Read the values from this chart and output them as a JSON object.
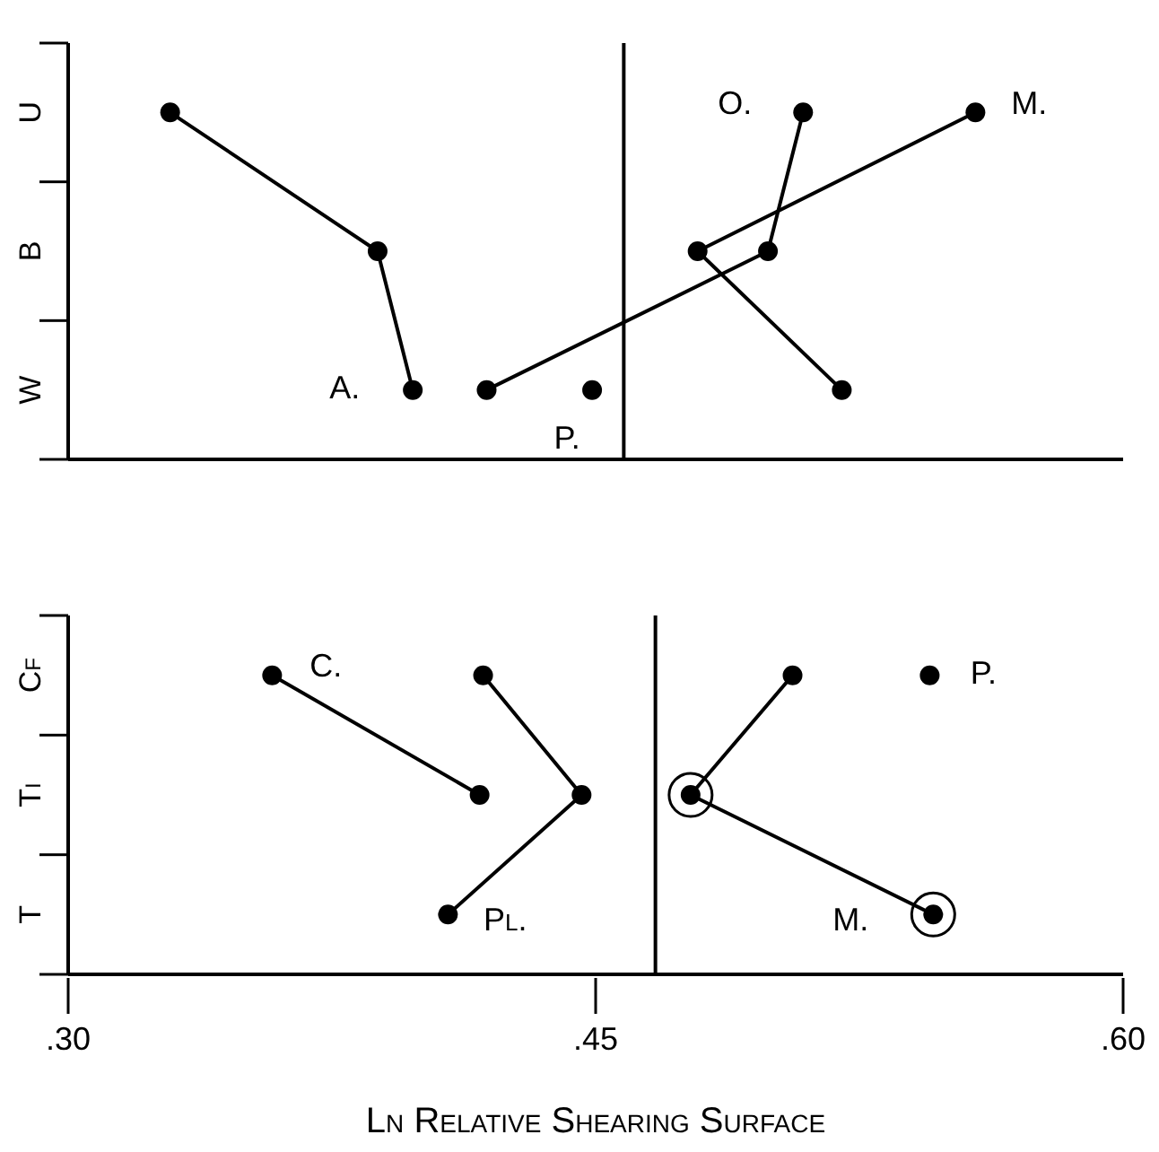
{
  "chart_data": [
    {
      "type": "line",
      "orientation": "horizontal",
      "categories": [
        "U",
        "B",
        "W"
      ],
      "xlim": [
        0.3,
        0.6
      ],
      "tick_labels": "y",
      "marker": "circle",
      "grid": false,
      "series": [
        {
          "color": "#000000",
          "values": [
            0.329,
            0.388,
            0.398
          ]
        },
        {
          "color": "#000000",
          "values": [
            0.509,
            0.499,
            0.419
          ]
        },
        {
          "color": "#000000",
          "values": [
            0.558,
            0.479,
            0.52
          ]
        },
        {
          "type": "scatter",
          "color": "#000000",
          "values": [
            null,
            null,
            0.449
          ]
        }
      ],
      "ref_lines": [
        {
          "axis": "x",
          "value": 0.458
        }
      ],
      "annotations": [
        {
          "text": "A.",
          "x": 0.398,
          "y": "W"
        },
        {
          "text": "O.",
          "x": 0.509,
          "y": "U"
        },
        {
          "text": "M.",
          "x": 0.558,
          "y": "U"
        },
        {
          "text": "P.",
          "x": 0.449,
          "y": "W"
        }
      ]
    },
    {
      "type": "line",
      "orientation": "horizontal",
      "categories": [
        "Cf",
        "Ti",
        "T"
      ],
      "xlim": [
        0.3,
        0.6
      ],
      "xticks": [
        {
          "value": 0.3,
          "label": ".30"
        },
        {
          "value": 0.45,
          "label": ".45"
        },
        {
          "value": 0.6,
          "label": ".60"
        }
      ],
      "xlabel": "Ln Relative Shearing Surface",
      "marker": "circle",
      "grid": false,
      "series": [
        {
          "color": "#000000",
          "values": [
            0.358,
            0.417,
            null
          ]
        },
        {
          "color": "#000000",
          "values": [
            0.418,
            0.446,
            0.408
          ]
        },
        {
          "color": "#000000",
          "values": [
            0.506,
            0.477,
            0.546
          ]
        },
        {
          "type": "scatter",
          "color": "#000000",
          "values": [
            0.545,
            null,
            null
          ]
        },
        {
          "type": "scatter",
          "marker": "circle",
          "color": "#000000",
          "values": [
            null,
            0.477,
            0.546
          ]
        }
      ],
      "ref_lines": [
        {
          "axis": "x",
          "value": 0.467
        }
      ],
      "annotations": [
        {
          "text": "C.",
          "x": 0.358,
          "y": "Cf"
        },
        {
          "text": "Pl.",
          "x": 0.408,
          "y": "T"
        },
        {
          "text": "M.",
          "x": 0.546,
          "y": "T"
        },
        {
          "text": "P.",
          "x": 0.545,
          "y": "Cf"
        }
      ]
    }
  ]
}
